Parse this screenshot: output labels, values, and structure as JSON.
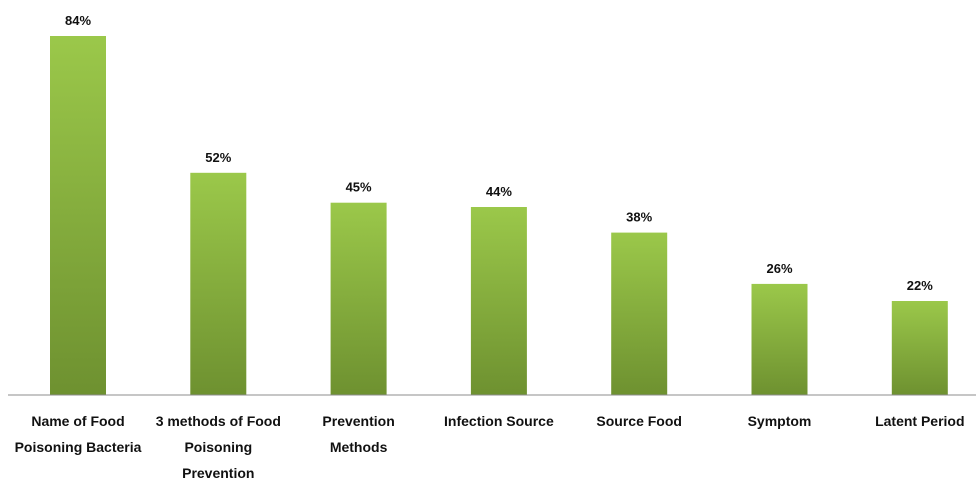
{
  "chart_data": {
    "type": "bar",
    "categories": [
      [
        "Name of Food",
        "Poisoning Bacteria"
      ],
      [
        "3 methods of Food",
        "Poisoning",
        "Prevention"
      ],
      [
        "Prevention",
        "Methods"
      ],
      [
        "Infection Source"
      ],
      [
        "Source Food"
      ],
      [
        "Symptom"
      ],
      [
        "Latent Period"
      ]
    ],
    "values": [
      84,
      52,
      45,
      44,
      38,
      26,
      22
    ],
    "value_labels": [
      "84%",
      "52%",
      "45%",
      "44%",
      "38%",
      "26%",
      "22%"
    ],
    "title": "",
    "xlabel": "",
    "ylabel": "",
    "ylim": [
      0,
      84
    ],
    "grid": false,
    "bar_color_top": "#9bc84a",
    "bar_color_bottom": "#6e9130",
    "axis_color": "#8c8c8c"
  }
}
